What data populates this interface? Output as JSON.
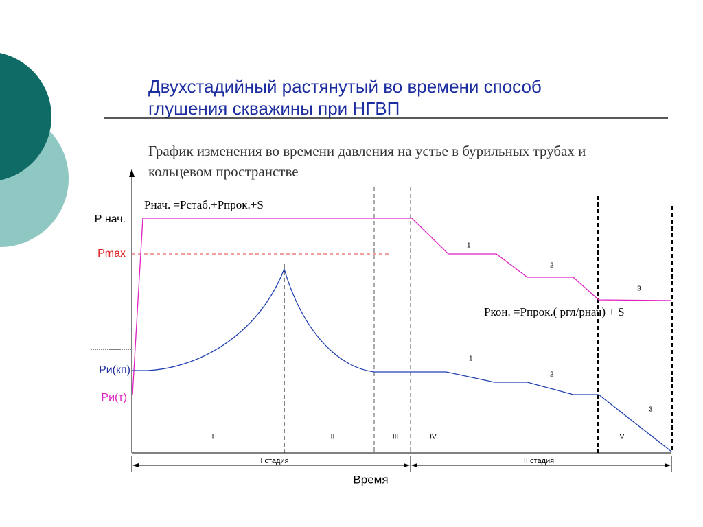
{
  "header": {
    "title_lines": [
      "Двухстадийный растянутый во времени способ",
      "глушения скважины при НГВП"
    ],
    "subtitle_lines": [
      "График изменения во времени давления на устье в бурильных трубах и",
      "кольцевом пространстве"
    ]
  },
  "diagram": {
    "formula_start": "Рнач. =Рстаб.+Рпрок.+S",
    "formula_end": "Ркон. =Рпрок.( ргл/рнач) + S",
    "y_labels": {
      "p_start": "Р нач.",
      "p_max": "Pmax",
      "p_annulus": "Ри(кп)",
      "p_pipe": "Ри(т)"
    },
    "pink_steps": [
      "1",
      "2",
      "3"
    ],
    "blue_steps": [
      "1",
      "2",
      "3"
    ],
    "phases": [
      "I",
      "II",
      "III",
      "IV",
      "V"
    ],
    "stages": [
      "I стадия",
      "II стадия"
    ],
    "x_label": "Время"
  }
}
